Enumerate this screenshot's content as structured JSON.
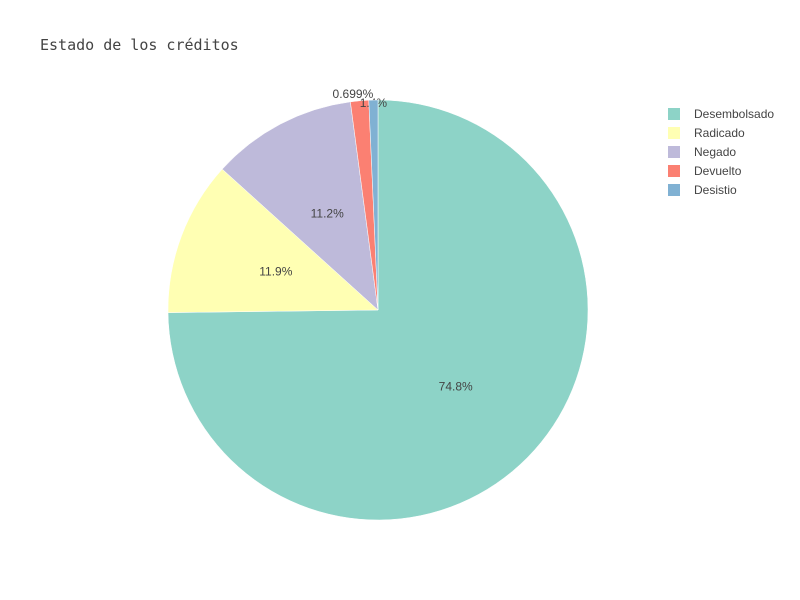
{
  "chart_data": {
    "type": "pie",
    "title": "Estado de los créditos",
    "categories": [
      "Desembolsado",
      "Radicado",
      "Negado",
      "Devuelto",
      "Desistio"
    ],
    "values": [
      74.8,
      11.9,
      11.2,
      1.4,
      0.699
    ],
    "labels": [
      "74.8%",
      "11.9%",
      "11.2%",
      "1.4%",
      "0.699%"
    ],
    "colors": [
      "#8dd3c7",
      "#ffffb3",
      "#bebada",
      "#fb8072",
      "#80b1d3"
    ],
    "legend": "top-right",
    "direction": "clockwise",
    "start_angle": "12 o'clock"
  }
}
